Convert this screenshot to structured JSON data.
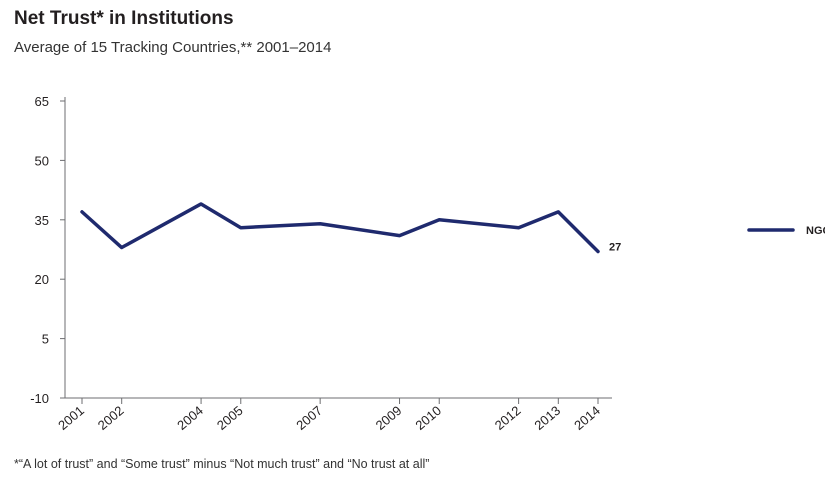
{
  "chart_data": {
    "type": "line",
    "title": "Net Trust* in Institutions",
    "subtitle": "Average of 15 Tracking Countries,** 2001–2014",
    "footnote": "*“A lot of trust” and “Some trust” minus “Not much trust” and “No trust at all”",
    "x": [
      "2001",
      "2002",
      "2004",
      "2005",
      "2007",
      "2009",
      "2010",
      "2012",
      "2013",
      "2014"
    ],
    "series": [
      {
        "name": "NGOs",
        "color": "#1f2a6e",
        "values": [
          37,
          28,
          39,
          33,
          34,
          31,
          35,
          33,
          37,
          27
        ]
      }
    ],
    "end_label": "27",
    "ylim": [
      -10,
      65
    ],
    "yticks": [
      65,
      50,
      35,
      20,
      5,
      -10
    ],
    "grid": false,
    "legend_position": "right",
    "xlabel": "",
    "ylabel": ""
  }
}
